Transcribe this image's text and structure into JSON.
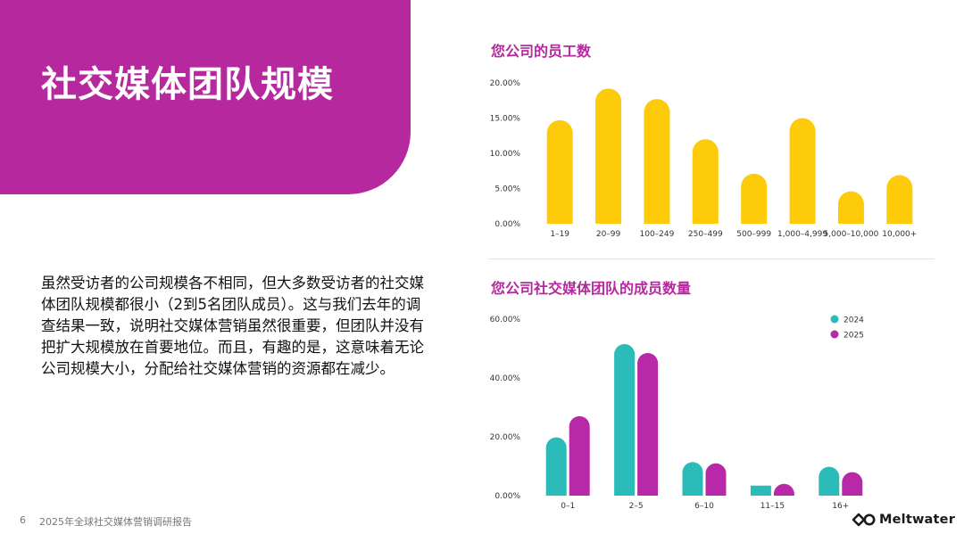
{
  "page": {
    "title": "社交媒体团队规模",
    "body": "虽然受访者的公司规模各不相同，但大多数受访者的社交媒体团队规模都很小（2到5名团队成员）。这与我们去年的调查结果一致，说明社交媒体营销虽然很重要，但团队并没有把扩大规模放在首要地位。而且，有趣的是，这意味着无论公司规模大小，分配给社交媒体营销的资源都在减少。",
    "page_number": "6",
    "report_title": "2025年全球社交媒体营销调研报告",
    "brand": "Meltwater"
  },
  "colors": {
    "accent_magenta": "#B5289E",
    "yellow": "#FDCB0A",
    "teal": "#2BBCB9",
    "purple": "#B829A8"
  },
  "chart_data": [
    {
      "type": "bar",
      "title": "您公司的员工数",
      "xlabel": "",
      "ylabel": "",
      "categories": [
        "1–19",
        "20–99",
        "100–249",
        "250–499",
        "500–999",
        "1,000–4,999",
        "5,000–10,000",
        "10,000+"
      ],
      "series": [
        {
          "values": [
            14.7,
            19.2,
            17.7,
            12.0,
            7.1,
            15.0,
            4.6,
            6.9
          ]
        }
      ],
      "ylim": [
        0,
        20
      ],
      "yticks": [
        "0.00%",
        "5.00%",
        "10.00%",
        "15.00%",
        "20.00%"
      ],
      "ytick_values": [
        0,
        5,
        10,
        15,
        20
      ],
      "grid": false,
      "color": "#FDCB0A"
    },
    {
      "type": "bar",
      "title": "您公司社交媒体团队的成员数量",
      "xlabel": "",
      "ylabel": "",
      "categories": [
        "0–1",
        "2–5",
        "6–10",
        "11–15",
        "16+"
      ],
      "series": [
        {
          "name": "2024",
          "values": [
            19.8,
            51.5,
            11.4,
            3.4,
            9.8
          ],
          "color": "#2BBCB9"
        },
        {
          "name": "2025",
          "values": [
            27.0,
            48.5,
            11.0,
            4.0,
            8.0
          ],
          "color": "#B829A8"
        }
      ],
      "ylim": [
        0,
        60
      ],
      "yticks": [
        "0.00%",
        "20.00%",
        "40.00%",
        "60.00%"
      ],
      "ytick_values": [
        0,
        20,
        40,
        60
      ],
      "grid": false,
      "legend": "top-right"
    }
  ]
}
